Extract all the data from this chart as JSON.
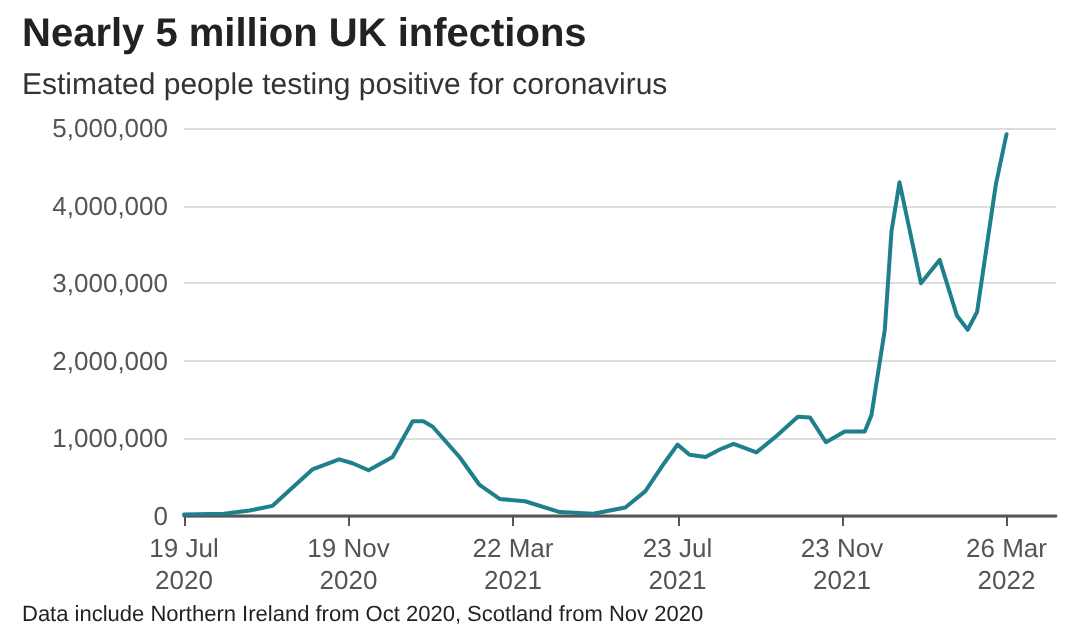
{
  "chart_data": {
    "type": "line",
    "title": "Nearly 5 million UK infections",
    "subtitle": "Estimated people testing positive for coronavirus",
    "annotations": [
      "Data include Northern Ireland from Oct 2020, Scotland from Nov 2020"
    ],
    "x": [
      "2020-07-19",
      "2020-08-18",
      "2020-09-06",
      "2020-09-23",
      "2020-10-23",
      "2020-11-12",
      "2020-11-22",
      "2020-12-04",
      "2020-12-22",
      "2021-01-06",
      "2021-01-14",
      "2021-01-21",
      "2021-02-10",
      "2021-02-25",
      "2021-03-12",
      "2021-03-31",
      "2021-04-26",
      "2021-05-21",
      "2021-06-14",
      "2021-06-29",
      "2021-07-13",
      "2021-07-23",
      "2021-08-01",
      "2021-08-13",
      "2021-08-24",
      "2021-09-03",
      "2021-09-20",
      "2021-10-05",
      "2021-10-21",
      "2021-10-30",
      "2021-11-11",
      "2021-11-25",
      "2021-12-10",
      "2021-12-15",
      "2021-12-25",
      "2021-12-30",
      "2022-01-05",
      "2022-01-21",
      "2022-02-04",
      "2022-02-17",
      "2022-02-25",
      "2022-03-04",
      "2022-03-18",
      "2022-03-26"
    ],
    "series": [
      {
        "color": "#1f7f8c",
        "values": [
          20000,
          30000,
          70000,
          130000,
          600000,
          730000,
          680000,
          590000,
          760000,
          1220000,
          1220000,
          1150000,
          760000,
          400000,
          220000,
          190000,
          50000,
          30000,
          110000,
          320000,
          680000,
          920000,
          790000,
          760000,
          860000,
          930000,
          820000,
          1030000,
          1280000,
          1270000,
          950000,
          1090000,
          1090000,
          1300000,
          2400000,
          3670000,
          4300000,
          3000000,
          3300000,
          2580000,
          2400000,
          2630000,
          4270000,
          4920000
        ]
      }
    ],
    "xlim": [
      "2020-07-19",
      "2022-05-02"
    ],
    "xticks": [
      {
        "value": "2020-07-19",
        "label": "19 Jul\n2020"
      },
      {
        "value": "2020-11-19",
        "label": "19 Nov\n2020"
      },
      {
        "value": "2021-03-22",
        "label": "22 Mar\n2021"
      },
      {
        "value": "2021-07-23",
        "label": "23 Jul\n2021"
      },
      {
        "value": "2021-11-23",
        "label": "23 Nov\n2021"
      },
      {
        "value": "2022-03-26",
        "label": "26 Mar\n2022"
      }
    ],
    "ylim": [
      0,
      5000000
    ],
    "yticks": [
      {
        "value": 0,
        "label": "0"
      },
      {
        "value": 1000000,
        "label": "1,000,000"
      },
      {
        "value": 2000000,
        "label": "2,000,000"
      },
      {
        "value": 3000000,
        "label": "3,000,000"
      },
      {
        "value": 4000000,
        "label": "4,000,000"
      },
      {
        "value": 5000000,
        "label": "5,000,000"
      }
    ],
    "grid": "y",
    "marker": "none",
    "line_style": "solid"
  }
}
